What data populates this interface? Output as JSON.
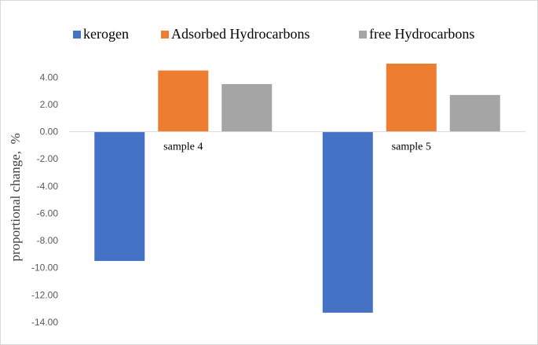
{
  "chart_data": {
    "type": "bar",
    "categories": [
      "sample 4",
      "sample 5"
    ],
    "series": [
      {
        "name": "kerogen",
        "values": [
          -9.5,
          -13.3
        ],
        "color": "#4472c4"
      },
      {
        "name": "Adsorbed Hydrocarbons",
        "values": [
          4.5,
          5.0
        ],
        "color": "#ed7d31"
      },
      {
        "name": "free  Hydrocarbons",
        "values": [
          3.5,
          2.7
        ],
        "color": "#a5a5a5"
      }
    ],
    "xlabel": "",
    "ylabel": "proportional change,  %",
    "ylim": [
      -14,
      5
    ],
    "yticks": [
      4,
      2,
      0,
      -2,
      -4,
      -6,
      -8,
      -10,
      -12,
      -14
    ],
    "ytick_labels": [
      "4.00",
      "2.00",
      "0.00",
      "-2.00",
      "-4.00",
      "-6.00",
      "-8.00",
      "-10.00",
      "-12.00",
      "-14.00"
    ],
    "grid": false,
    "legend_position": "top"
  }
}
